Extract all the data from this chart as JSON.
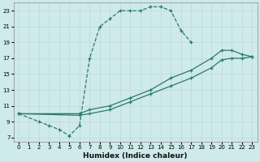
{
  "xlabel": "Humidex (Indice chaleur)",
  "bg_color": "#ceeaea",
  "grid_color": "#c0d8d8",
  "line_color": "#2a7a6a",
  "xlim": [
    -0.5,
    23.5
  ],
  "ylim": [
    6.5,
    24
  ],
  "xticks": [
    0,
    1,
    2,
    3,
    4,
    5,
    6,
    7,
    8,
    9,
    10,
    11,
    12,
    13,
    14,
    15,
    16,
    17,
    18,
    19,
    20,
    21,
    22,
    23
  ],
  "yticks": [
    7,
    9,
    11,
    13,
    15,
    17,
    19,
    21,
    23
  ],
  "curve1_x": [
    0,
    2,
    3,
    4,
    5,
    6,
    7,
    8,
    9,
    10,
    11,
    12,
    13,
    14,
    15,
    16,
    17
  ],
  "curve1_y": [
    10,
    9,
    8.5,
    8,
    7.2,
    8.5,
    17,
    21,
    22,
    23,
    23,
    23,
    23.5,
    23.5,
    23,
    20.5,
    19
  ],
  "curve2_x": [
    0,
    6,
    7,
    9,
    11,
    13,
    15,
    17,
    19,
    20,
    21,
    22,
    23
  ],
  "curve2_y": [
    10,
    10,
    10.5,
    11,
    12,
    13,
    14.5,
    15.5,
    17,
    18,
    18,
    17.5,
    17.2
  ],
  "curve3_x": [
    0,
    6,
    7,
    9,
    11,
    13,
    15,
    17,
    19,
    20,
    21,
    22,
    23
  ],
  "curve3_y": [
    10,
    9.8,
    10,
    10.5,
    11.5,
    12.5,
    13.5,
    14.5,
    15.8,
    16.8,
    17,
    17,
    17.2
  ]
}
